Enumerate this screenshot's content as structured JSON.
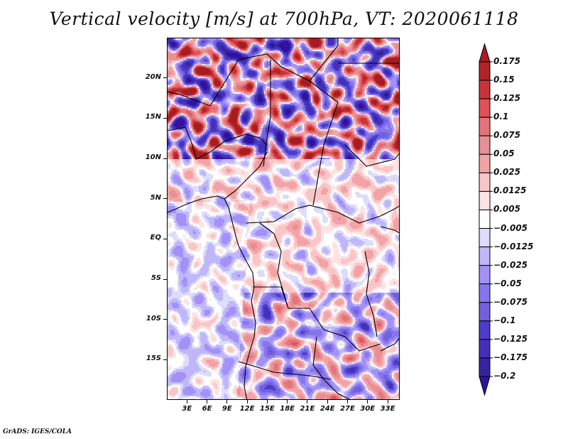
{
  "title": "Vertical velocity [m/s] at 700hPa, VT: 2020061118",
  "credit": "GrADS: IGES/COLA",
  "map": {
    "lon_range": [
      0,
      34.8
    ],
    "lat_range": [
      -20,
      25
    ],
    "variable": "Vertical velocity",
    "units": "m/s",
    "level": "700hPa",
    "valid_time": "2020061118"
  },
  "axes": {
    "y_ticks": [
      {
        "label": "20N",
        "lat": 20
      },
      {
        "label": "15N",
        "lat": 15
      },
      {
        "label": "10N",
        "lat": 10
      },
      {
        "label": "5N",
        "lat": 5
      },
      {
        "label": "EQ",
        "lat": 0
      },
      {
        "label": "5S",
        "lat": -5
      },
      {
        "label": "10S",
        "lat": -10
      },
      {
        "label": "15S",
        "lat": -15
      }
    ],
    "x_ticks": [
      {
        "label": "3E",
        "lon": 3
      },
      {
        "label": "6E",
        "lon": 6
      },
      {
        "label": "9E",
        "lon": 9
      },
      {
        "label": "12E",
        "lon": 12
      },
      {
        "label": "15E",
        "lon": 15
      },
      {
        "label": "18E",
        "lon": 18
      },
      {
        "label": "21E",
        "lon": 21
      },
      {
        "label": "24E",
        "lon": 24
      },
      {
        "label": "27E",
        "lon": 27
      },
      {
        "label": "30E",
        "lon": 30
      },
      {
        "label": "33E",
        "lon": 33
      }
    ]
  },
  "colorbar": {
    "levels": [
      "0.175",
      "0.15",
      "0.125",
      "0.1",
      "0.075",
      "0.05",
      "0.025",
      "0.0125",
      "0.005",
      "−0.005",
      "−0.0125",
      "−0.025",
      "−0.05",
      "−0.075",
      "−0.1",
      "−0.125",
      "−0.175",
      "−0.2"
    ],
    "colors": [
      "#b02326",
      "#c93338",
      "#e05257",
      "#e6727a",
      "#e68f95",
      "#f3a3a6",
      "#f9c6c8",
      "#fde3e4",
      "#ffffff",
      "#dcdcfc",
      "#c0b6fa",
      "#a391f7",
      "#8775ed",
      "#7261dc",
      "#4e3ccb",
      "#4430b8",
      "#34259f"
    ],
    "top_arrow_color": "#a51c22",
    "bottom_arrow_color": "#3210a0"
  }
}
